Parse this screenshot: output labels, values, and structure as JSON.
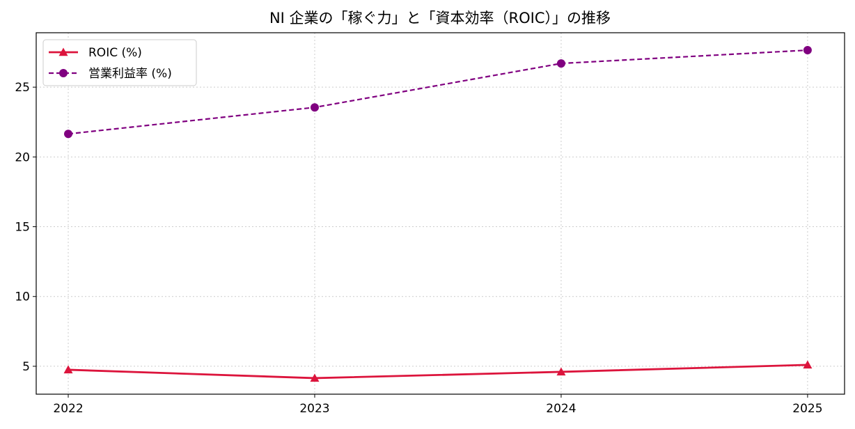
{
  "chart_data": {
    "type": "line",
    "title": "NI 企業の「稼ぐ力」と「資本効率（ROIC）」の推移",
    "xlabel": "",
    "ylabel": "",
    "x": [
      "2022",
      "2023",
      "2024",
      "2025"
    ],
    "xlim": [
      2021.87,
      2025.15
    ],
    "ylim": [
      3.0,
      28.9
    ],
    "yticks": [
      5,
      10,
      15,
      20,
      25
    ],
    "grid": true,
    "legend_position": "top-left",
    "series": [
      {
        "name": "ROIC (%)",
        "values": [
          4.75,
          4.15,
          4.6,
          5.1
        ],
        "color": "#dc143c",
        "marker": "triangle",
        "line_style": "solid"
      },
      {
        "name": "営業利益率 (%)",
        "values": [
          21.65,
          23.55,
          26.7,
          27.65
        ],
        "color": "#800080",
        "marker": "circle",
        "line_style": "dashed"
      }
    ]
  }
}
